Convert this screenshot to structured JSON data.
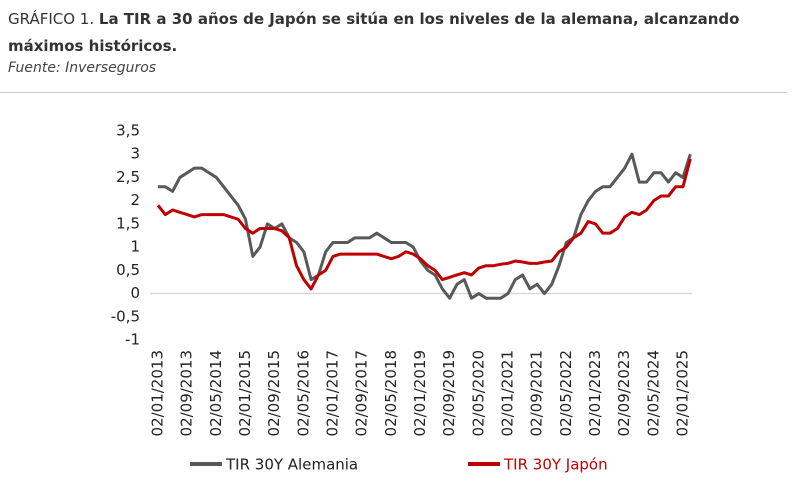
{
  "header": {
    "label": "GRÁFICO 1.",
    "title": "La TIR a 30 años de Japón se sitúa en los niveles de la alemana, alcanzando máximos históricos.",
    "source": "Fuente: Inverseguros"
  },
  "chart_data": {
    "type": "line",
    "categories": [
      "02/01/2013",
      null,
      null,
      null,
      "02/09/2013",
      null,
      null,
      null,
      "02/05/2014",
      null,
      null,
      null,
      "02/01/2015",
      null,
      null,
      null,
      "02/09/2015",
      null,
      null,
      null,
      "02/05/2016",
      null,
      null,
      null,
      "02/01/2017",
      null,
      null,
      null,
      "02/09/2017",
      null,
      null,
      null,
      "02/05/2018",
      null,
      null,
      null,
      "02/01/2019",
      null,
      null,
      null,
      "02/09/2019",
      null,
      null,
      null,
      "02/05/2020",
      null,
      null,
      null,
      "02/01/2021",
      null,
      null,
      null,
      "02/09/2021",
      null,
      null,
      null,
      "02/05/2022",
      null,
      null,
      null,
      "02/01/2023",
      null,
      null,
      null,
      "02/09/2023",
      null,
      null,
      null,
      "02/05/2024",
      null,
      null,
      null,
      "02/01/2025",
      null
    ],
    "series": [
      {
        "name": "TIR 30Y Alemania",
        "color": "#595959",
        "values": [
          2.3,
          2.3,
          2.2,
          2.5,
          2.6,
          2.7,
          2.7,
          2.6,
          2.5,
          2.3,
          2.1,
          1.9,
          1.6,
          0.8,
          1.0,
          1.5,
          1.4,
          1.5,
          1.2,
          1.1,
          0.9,
          0.3,
          0.4,
          0.9,
          1.1,
          1.1,
          1.1,
          1.2,
          1.2,
          1.2,
          1.3,
          1.2,
          1.1,
          1.1,
          1.1,
          1.0,
          0.7,
          0.5,
          0.4,
          0.1,
          -0.1,
          0.2,
          0.3,
          -0.1,
          0.0,
          -0.1,
          -0.1,
          -0.1,
          0.0,
          0.3,
          0.4,
          0.1,
          0.2,
          0.0,
          0.2,
          0.6,
          1.1,
          1.2,
          1.7,
          2.0,
          2.2,
          2.3,
          2.3,
          2.5,
          2.7,
          3.0,
          2.4,
          2.4,
          2.6,
          2.6,
          2.4,
          2.6,
          2.5,
          3.0
        ]
      },
      {
        "name": "TIR 30Y Japón",
        "color": "#c00000",
        "values": [
          1.9,
          1.7,
          1.8,
          1.75,
          1.7,
          1.65,
          1.7,
          1.7,
          1.7,
          1.7,
          1.65,
          1.6,
          1.4,
          1.3,
          1.4,
          1.4,
          1.4,
          1.35,
          1.2,
          0.6,
          0.3,
          0.1,
          0.4,
          0.5,
          0.8,
          0.85,
          0.85,
          0.85,
          0.85,
          0.85,
          0.85,
          0.8,
          0.75,
          0.8,
          0.9,
          0.85,
          0.75,
          0.6,
          0.5,
          0.3,
          0.35,
          0.4,
          0.45,
          0.4,
          0.55,
          0.6,
          0.6,
          0.63,
          0.65,
          0.7,
          0.68,
          0.65,
          0.65,
          0.68,
          0.7,
          0.9,
          1.0,
          1.2,
          1.3,
          1.55,
          1.5,
          1.3,
          1.3,
          1.4,
          1.65,
          1.75,
          1.7,
          1.8,
          2.0,
          2.1,
          2.1,
          2.3,
          2.3,
          2.9
        ]
      }
    ],
    "ylim": [
      -1,
      3.5
    ],
    "yticks": [
      {
        "value": 3.5,
        "label": "3,5"
      },
      3,
      {
        "value": 2.5,
        "label": "2,5"
      },
      2,
      {
        "value": 1.5,
        "label": "1,5"
      },
      1,
      {
        "value": 0.5,
        "label": "0,5"
      },
      0,
      {
        "value": -0.5,
        "label": "-0,5"
      },
      -1
    ]
  }
}
